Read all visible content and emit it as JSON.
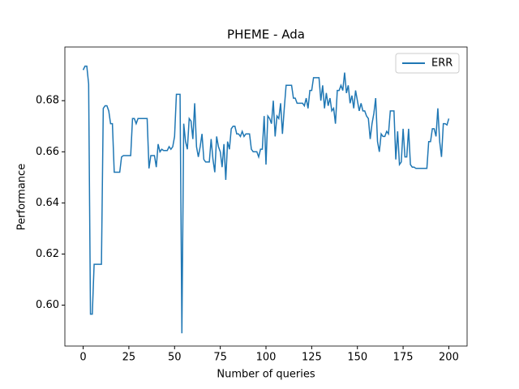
{
  "chart_data": {
    "type": "line",
    "title": "PHEME - Ada",
    "x_label": "Number of queries",
    "y_label": "Performance",
    "x": [
      0,
      1,
      2,
      3,
      4,
      5,
      6,
      7,
      8,
      9,
      10,
      11,
      12,
      13,
      14,
      15,
      16,
      17,
      18,
      19,
      20,
      21,
      22,
      23,
      24,
      25,
      26,
      27,
      28,
      29,
      30,
      31,
      32,
      33,
      34,
      35,
      36,
      37,
      38,
      39,
      40,
      41,
      42,
      43,
      44,
      45,
      46,
      47,
      48,
      49,
      50,
      51,
      52,
      53,
      54,
      55,
      56,
      57,
      58,
      59,
      60,
      61,
      62,
      63,
      64,
      65,
      66,
      67,
      68,
      69,
      70,
      71,
      72,
      73,
      74,
      75,
      76,
      77,
      78,
      79,
      80,
      81,
      82,
      83,
      84,
      85,
      86,
      87,
      88,
      89,
      90,
      91,
      92,
      93,
      94,
      95,
      96,
      97,
      98,
      99,
      100,
      101,
      102,
      103,
      104,
      105,
      106,
      107,
      108,
      109,
      110,
      111,
      112,
      113,
      114,
      115,
      116,
      117,
      118,
      119,
      120,
      121,
      122,
      123,
      124,
      125,
      126,
      127,
      128,
      129,
      130,
      131,
      132,
      133,
      134,
      135,
      136,
      137,
      138,
      139,
      140,
      141,
      142,
      143,
      144,
      145,
      146,
      147,
      148,
      149,
      150,
      151,
      152,
      153,
      154,
      155,
      156,
      157,
      158,
      159,
      160,
      161,
      162,
      163,
      164,
      165,
      166,
      167,
      168,
      169,
      170,
      171,
      172,
      173,
      174,
      175,
      176,
      177,
      178,
      179,
      180,
      181,
      182,
      183,
      184,
      185,
      186,
      187,
      188,
      189,
      190,
      191,
      192,
      193,
      194,
      195,
      196,
      197,
      198,
      199,
      200
    ],
    "series": [
      {
        "name": "ERR",
        "color": "#1f77b4",
        "values": [
          0.692,
          0.6935,
          0.6935,
          0.6865,
          0.5965,
          0.5965,
          0.616,
          0.616,
          0.616,
          0.616,
          0.616,
          0.677,
          0.678,
          0.678,
          0.676,
          0.671,
          0.671,
          0.652,
          0.652,
          0.652,
          0.652,
          0.658,
          0.6585,
          0.6585,
          0.6585,
          0.6585,
          0.6585,
          0.673,
          0.673,
          0.671,
          0.673,
          0.673,
          0.673,
          0.673,
          0.673,
          0.673,
          0.6535,
          0.6585,
          0.6585,
          0.6585,
          0.654,
          0.663,
          0.66,
          0.661,
          0.6605,
          0.6605,
          0.6605,
          0.662,
          0.661,
          0.662,
          0.666,
          0.6825,
          0.6825,
          0.6825,
          0.589,
          0.671,
          0.664,
          0.661,
          0.673,
          0.672,
          0.665,
          0.679,
          0.662,
          0.658,
          0.662,
          0.667,
          0.657,
          0.656,
          0.656,
          0.656,
          0.665,
          0.657,
          0.652,
          0.666,
          0.662,
          0.66,
          0.654,
          0.663,
          0.649,
          0.664,
          0.661,
          0.669,
          0.67,
          0.67,
          0.667,
          0.667,
          0.666,
          0.668,
          0.666,
          0.667,
          0.667,
          0.667,
          0.661,
          0.66,
          0.66,
          0.66,
          0.658,
          0.661,
          0.661,
          0.674,
          0.655,
          0.674,
          0.673,
          0.671,
          0.68,
          0.666,
          0.674,
          0.673,
          0.679,
          0.667,
          0.677,
          0.686,
          0.686,
          0.686,
          0.686,
          0.681,
          0.681,
          0.679,
          0.679,
          0.679,
          0.679,
          0.678,
          0.681,
          0.677,
          0.684,
          0.684,
          0.689,
          0.689,
          0.689,
          0.689,
          0.68,
          0.686,
          0.677,
          0.683,
          0.678,
          0.681,
          0.676,
          0.677,
          0.671,
          0.684,
          0.684,
          0.686,
          0.684,
          0.691,
          0.683,
          0.686,
          0.679,
          0.682,
          0.677,
          0.684,
          0.68,
          0.676,
          0.679,
          0.676,
          0.676,
          0.674,
          0.673,
          0.665,
          0.671,
          0.675,
          0.681,
          0.664,
          0.66,
          0.667,
          0.666,
          0.666,
          0.668,
          0.667,
          0.676,
          0.676,
          0.676,
          0.657,
          0.668,
          0.655,
          0.656,
          0.669,
          0.658,
          0.658,
          0.669,
          0.655,
          0.654,
          0.654,
          0.6535,
          0.6535,
          0.6535,
          0.6535,
          0.6535,
          0.6535,
          0.6535,
          0.664,
          0.664,
          0.669,
          0.669,
          0.666,
          0.677,
          0.664,
          0.658,
          0.671,
          0.671,
          0.6705,
          0.673
        ]
      }
    ],
    "xlim": [
      -10,
      210
    ],
    "ylim": [
      0.584,
      0.701
    ],
    "xticks": [
      0,
      25,
      50,
      75,
      100,
      125,
      150,
      175,
      200
    ],
    "yticks": [
      {
        "value": 0.6,
        "label": "0.60"
      },
      {
        "value": 0.62,
        "label": "0.62"
      },
      {
        "value": 0.64,
        "label": "0.64"
      },
      {
        "value": 0.66,
        "label": "0.66"
      },
      {
        "value": 0.68,
        "label": "0.68"
      }
    ],
    "grid": false,
    "legend": "upper right"
  }
}
